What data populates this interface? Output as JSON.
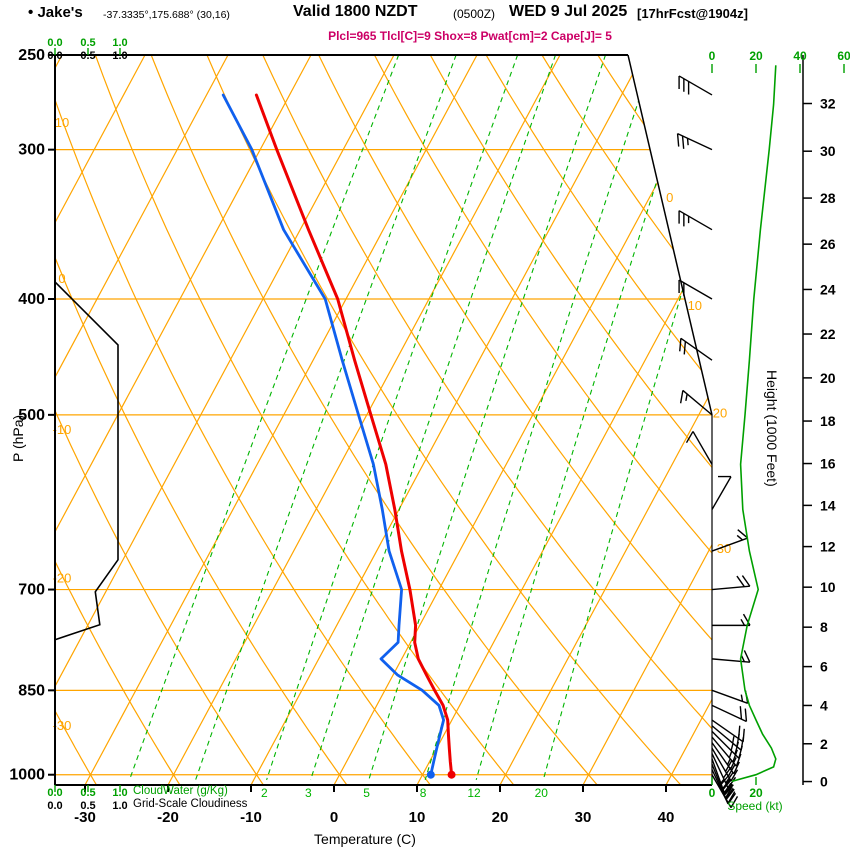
{
  "header": {
    "bullet": "•",
    "station": "Jake's",
    "coords": "-37.3335°,175.688° (30,16)",
    "valid": "Valid 1800 NZDT",
    "valid_z": "(0500Z)",
    "date": "WED 9 Jul 2025",
    "fcst_tag": "[17hrFcst@1904z]",
    "indices": "Plcl=965 Tlcl[C]=9 Shox=8 Pwat[cm]=2 Cape[J]= 5"
  },
  "colors": {
    "grid": "#ffa500",
    "mixing": "#00b400",
    "green": "#00a000",
    "temperature": "#ee0000",
    "dewpoint": "#1060ee",
    "indices": "#cc0066",
    "cloudiness": "#000000",
    "frame": "#000000"
  },
  "axes": {
    "pressure": {
      "label": "P (hPa)",
      "ticks": [
        250,
        300,
        400,
        500,
        700,
        850,
        1000
      ]
    },
    "temperature": {
      "label": "Temperature (C)",
      "ticks": [
        -30,
        -20,
        -10,
        0,
        10,
        20,
        30,
        40
      ]
    },
    "height": {
      "label": "Height (1000 Feet)",
      "ticks": [
        0,
        2,
        4,
        6,
        8,
        10,
        12,
        14,
        16,
        18,
        20,
        22,
        24,
        26,
        28,
        30,
        32
      ]
    },
    "speed": {
      "label": "Speed (kt)",
      "ticks_top": [
        0,
        20,
        40,
        60
      ],
      "ticks_bottom": [
        0,
        20
      ]
    },
    "cloud_scales": {
      "ticks": [
        "0.0",
        "0.5",
        "1.0"
      ],
      "cloudwater_label": "CloudWater (g/Kg)",
      "cloudiness_label": "Grid-Scale Cloudiness"
    },
    "isotherm_labels": [
      0,
      10,
      20,
      30
    ],
    "adiabat_labels": [
      10,
      0,
      -10,
      -20,
      -30
    ],
    "mixing_ratio_labels": [
      2,
      3,
      5,
      8,
      12,
      20
    ]
  },
  "chart_data": {
    "type": "line",
    "subtype": "skew-t log-p atmospheric sounding",
    "pressure_range_hPa": [
      1020,
      250
    ],
    "pressure_hPa": [
      1000,
      975,
      950,
      925,
      900,
      875,
      850,
      825,
      800,
      775,
      750,
      700,
      650,
      600,
      550,
      500,
      450,
      400,
      350,
      300,
      270
    ],
    "series": [
      {
        "name": "temperature_C",
        "values": [
          13.5,
          12.5,
          11.5,
          10.5,
          9.5,
          8,
          6,
          4,
          2,
          0.5,
          -0.5,
          -3.5,
          -7,
          -10.5,
          -14.5,
          -19.5,
          -25,
          -31,
          -39,
          -48,
          -54
        ]
      },
      {
        "name": "dewpoint_C",
        "values": [
          11,
          10.5,
          10,
          9.5,
          9,
          7.5,
          4.5,
          0.5,
          -2.5,
          -1.5,
          -2.5,
          -4.5,
          -8.5,
          -12,
          -16,
          -21,
          -26.5,
          -32.5,
          -42,
          -51,
          -58
        ]
      }
    ],
    "isotherms_C": {
      "start": -100,
      "end": 40,
      "step": 10
    },
    "dry_adiabats_C": {
      "start": -40,
      "end": 120,
      "step": 10
    },
    "mixing_ratio_gkg": [
      0.5,
      1,
      2,
      3,
      5,
      8,
      12,
      20
    ],
    "wind_barbs": [
      {
        "p": 1000,
        "dir": 150,
        "kt": 30
      },
      {
        "p": 990,
        "dir": 155,
        "kt": 32
      },
      {
        "p": 980,
        "dir": 158,
        "kt": 33
      },
      {
        "p": 970,
        "dir": 160,
        "kt": 30
      },
      {
        "p": 960,
        "dir": 155,
        "kt": 28
      },
      {
        "p": 950,
        "dir": 150,
        "kt": 28
      },
      {
        "p": 940,
        "dir": 145,
        "kt": 27
      },
      {
        "p": 930,
        "dir": 140,
        "kt": 25
      },
      {
        "p": 920,
        "dir": 135,
        "kt": 25
      },
      {
        "p": 910,
        "dir": 130,
        "kt": 23
      },
      {
        "p": 900,
        "dir": 125,
        "kt": 22
      },
      {
        "p": 875,
        "dir": 115,
        "kt": 18
      },
      {
        "p": 850,
        "dir": 110,
        "kt": 15
      },
      {
        "p": 800,
        "dir": 95,
        "kt": 13
      },
      {
        "p": 750,
        "dir": 90,
        "kt": 15
      },
      {
        "p": 700,
        "dir": 85,
        "kt": 20
      },
      {
        "p": 650,
        "dir": 70,
        "kt": 15
      },
      {
        "p": 600,
        "dir": 30,
        "kt": 10
      },
      {
        "p": 550,
        "dir": 330,
        "kt": 10
      },
      {
        "p": 500,
        "dir": 310,
        "kt": 15
      },
      {
        "p": 450,
        "dir": 305,
        "kt": 18
      },
      {
        "p": 400,
        "dir": 300,
        "kt": 20
      },
      {
        "p": 350,
        "dir": 300,
        "kt": 23
      },
      {
        "p": 300,
        "dir": 295,
        "kt": 27
      },
      {
        "p": 270,
        "dir": 300,
        "kt": 28
      }
    ],
    "wind_speed_profile": {
      "p": [
        1013,
        1000,
        985,
        970,
        950,
        925,
        900,
        875,
        850,
        800,
        750,
        700,
        650,
        600,
        550,
        500,
        450,
        400,
        350,
        300,
        275,
        255
      ],
      "kt": [
        9,
        20,
        28,
        29,
        27,
        23,
        20,
        17,
        15,
        13,
        16,
        21,
        17,
        14,
        13,
        15,
        17,
        19,
        22,
        26,
        28,
        29
      ]
    },
    "grid_scale_cloudiness": {
      "p": [
        771,
        749,
        703,
        661,
        437,
        387
      ],
      "value": [
        0,
        0.69,
        0.62,
        0.97,
        0.97,
        0
      ]
    }
  }
}
